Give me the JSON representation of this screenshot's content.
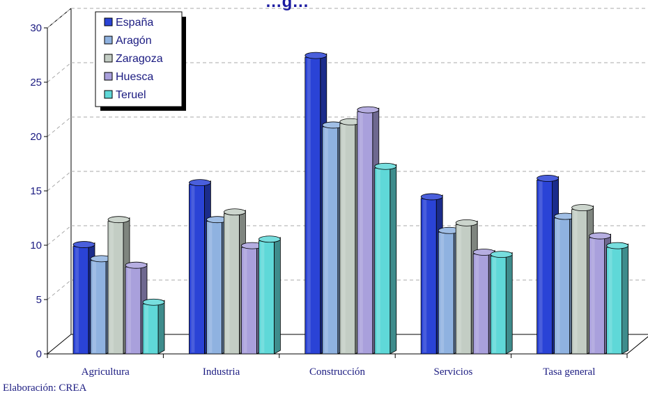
{
  "chart_data": {
    "type": "bar",
    "title": "…g…",
    "categories": [
      "Agricultura",
      "Industria",
      "Construcción",
      "Servicios",
      "Tasa general"
    ],
    "series": [
      {
        "name": "España",
        "values": [
          9.9,
          15.6,
          27.3,
          14.3,
          16.0
        ]
      },
      {
        "name": "Aragón",
        "values": [
          8.6,
          12.2,
          20.9,
          11.2,
          12.5
        ]
      },
      {
        "name": "Zaragoza",
        "values": [
          12.2,
          12.9,
          21.2,
          11.9,
          13.3
        ]
      },
      {
        "name": "Huesca",
        "values": [
          8.0,
          9.8,
          22.3,
          9.2,
          10.7
        ]
      },
      {
        "name": "Teruel",
        "values": [
          4.6,
          10.4,
          17.1,
          9.0,
          9.8
        ]
      }
    ],
    "y_ticks": [
      "0",
      "5",
      "10",
      "15",
      "20",
      "25",
      "30"
    ],
    "ylim": [
      0,
      30
    ],
    "grid": true,
    "legend_position": "top-left",
    "source": "Elaboración: CREA"
  },
  "colors": {
    "España": "#2a43d6",
    "Aragón": "#8fb2e0",
    "Zaragoza": "#c3cdc4",
    "Huesca": "#a9a0dc",
    "Teruel": "#5fd8d8",
    "text": "#1a1a80",
    "axis": "#000000",
    "grid": "#aaaaaa"
  }
}
